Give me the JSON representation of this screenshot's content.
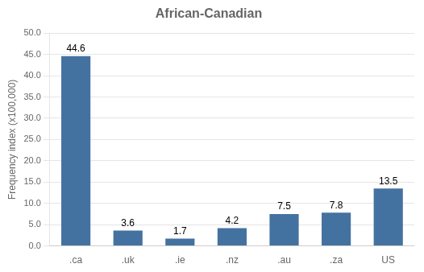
{
  "chart_data": {
    "type": "bar",
    "title": "African-Canadian",
    "categories": [
      ".ca",
      ".uk",
      ".ie",
      ".nz",
      ".au",
      ".za",
      "US"
    ],
    "values": [
      44.6,
      3.6,
      1.7,
      4.2,
      7.5,
      7.8,
      13.5
    ],
    "color": "#4472a0",
    "ylabel": "Frequency index (x100,000)",
    "ylim": [
      0,
      50
    ],
    "yticks": [
      {
        "value": 0,
        "label": "0.0"
      },
      {
        "value": 5,
        "label": "5.0"
      },
      {
        "value": 10,
        "label": "10.0"
      },
      {
        "value": 15,
        "label": "15.0"
      },
      {
        "value": 20,
        "label": "20.0"
      },
      {
        "value": 25,
        "label": "25.0"
      },
      {
        "value": 30,
        "label": "30.0"
      },
      {
        "value": 35,
        "label": "35.0"
      },
      {
        "value": 40,
        "label": "40.0"
      },
      {
        "value": 45,
        "label": "45.0"
      },
      {
        "value": 50,
        "label": "50.0"
      }
    ],
    "grid": true,
    "data_labels": true
  }
}
